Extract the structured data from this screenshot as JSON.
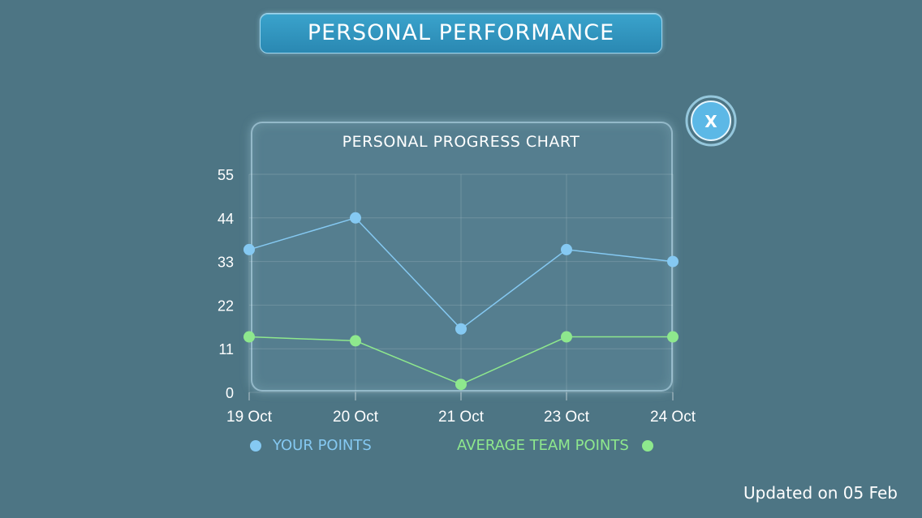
{
  "header": {
    "title": "PERSONAL PERFORMANCE"
  },
  "close_button": {
    "label": "X"
  },
  "footer": {
    "updated_text": "Updated on 05 Feb"
  },
  "colors": {
    "your_points": "#85c9f2",
    "team_points": "#8ee88d",
    "background": "#4d7584"
  },
  "chart_data": {
    "type": "line",
    "title": "PERSONAL PROGRESS CHART",
    "categories": [
      "19 Oct",
      "20 Oct",
      "21 Oct",
      "23 Oct",
      "24 Oct"
    ],
    "yticks": [
      0,
      11,
      22,
      33,
      44,
      55
    ],
    "ylim": [
      0,
      55
    ],
    "grid": true,
    "legend_position": "bottom",
    "series": [
      {
        "name": "YOUR POINTS",
        "color": "#85c9f2",
        "values": [
          36,
          44,
          16,
          36,
          33
        ]
      },
      {
        "name": "AVERAGE TEAM POINTS",
        "color": "#8ee88d",
        "values": [
          14,
          13,
          2,
          14,
          14
        ]
      }
    ]
  }
}
